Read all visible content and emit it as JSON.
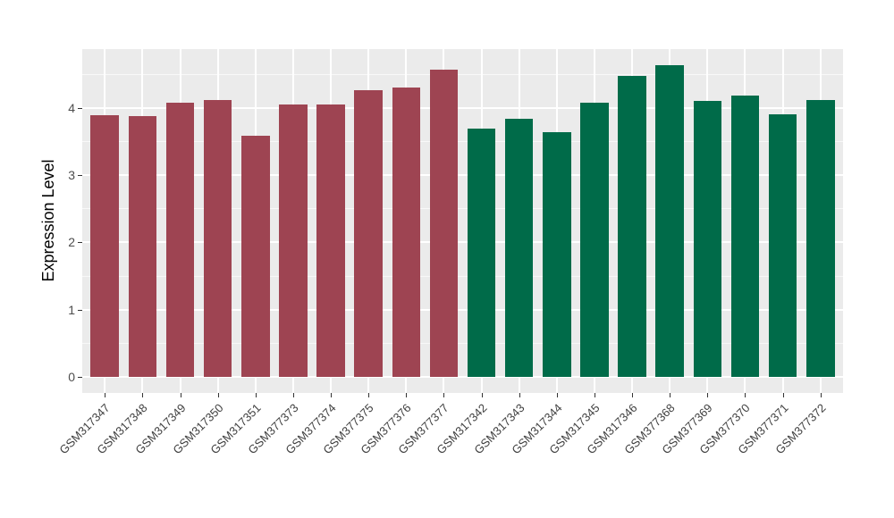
{
  "chart_data": {
    "type": "bar",
    "title": "",
    "xlabel": "",
    "ylabel": "Expression Level",
    "categories": [
      "GSM317347",
      "GSM317348",
      "GSM317349",
      "GSM317350",
      "GSM317351",
      "GSM377373",
      "GSM377374",
      "GSM377375",
      "GSM377376",
      "GSM377377",
      "GSM317342",
      "GSM317343",
      "GSM317344",
      "GSM317345",
      "GSM317346",
      "GSM377368",
      "GSM377369",
      "GSM377370",
      "GSM377371",
      "GSM377372"
    ],
    "values": [
      3.89,
      3.87,
      4.07,
      4.12,
      3.58,
      4.05,
      4.05,
      4.26,
      4.3,
      4.56,
      3.69,
      3.84,
      3.64,
      4.07,
      4.48,
      4.63,
      4.1,
      4.18,
      3.9,
      4.11
    ],
    "bar_groups": [
      "maroon",
      "maroon",
      "maroon",
      "maroon",
      "maroon",
      "maroon",
      "maroon",
      "maroon",
      "maroon",
      "maroon",
      "green",
      "green",
      "green",
      "green",
      "green",
      "green",
      "green",
      "green",
      "green",
      "green"
    ],
    "group_colors": {
      "maroon": "#9E4452",
      "green": "#006B49"
    },
    "y_ticks": [
      0,
      1,
      2,
      3,
      4
    ],
    "y_minor_ticks": [
      0.5,
      1.5,
      2.5,
      3.5,
      4.5
    ],
    "ylim": [
      -0.24,
      4.87
    ],
    "grid": "on",
    "legend": "none",
    "panel_bg": "#EBEBEB",
    "grid_color": "#FFFFFF"
  }
}
